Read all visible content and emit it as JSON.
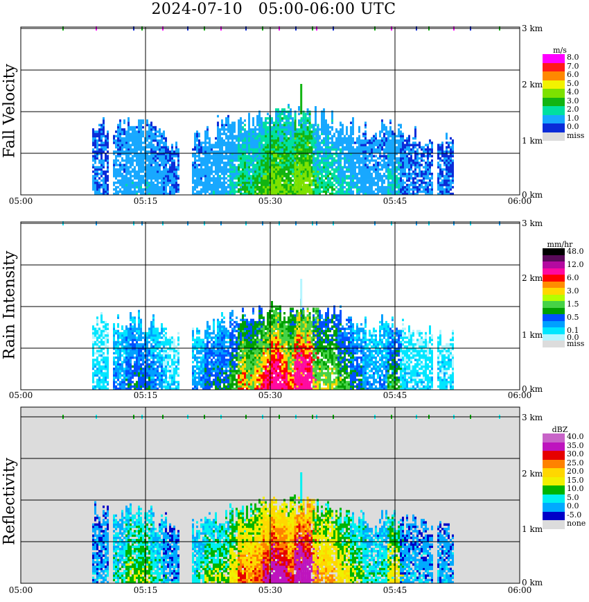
{
  "title": "2024-07-10   05:00-06:00 UTC",
  "x_ticks": [
    "05:00",
    "05:15",
    "05:30",
    "05:45",
    "06:00"
  ],
  "height_ticks": [
    "3 km",
    "2 km",
    "1 km",
    "0 km"
  ],
  "panels": [
    {
      "id": "fall-velocity",
      "ylabel": "Fall Velocity",
      "unit": "m/s",
      "background": "#ffffff",
      "legend": [
        {
          "label": "8.0",
          "color": "#ff00ff"
        },
        {
          "label": "7.0",
          "color": "#ff1a1a"
        },
        {
          "label": "6.0",
          "color": "#ff8800"
        },
        {
          "label": "5.0",
          "color": "#f2f200"
        },
        {
          "label": "4.0",
          "color": "#7de100"
        },
        {
          "label": "3.0",
          "color": "#12b412"
        },
        {
          "label": "2.0",
          "color": "#00e0a0"
        },
        {
          "label": "1.0",
          "color": "#18a8ff"
        },
        {
          "label": "0.0",
          "color": "#0a2cd8"
        },
        {
          "label": "miss",
          "color": "#dcdcdc"
        }
      ]
    },
    {
      "id": "rain-intensity",
      "ylabel": "Rain Intensity",
      "unit": "mm/hr",
      "background": "#ffffff",
      "legend": [
        {
          "label": "48.0",
          "color": "#000000"
        },
        {
          "label": "",
          "color": "#5a0a5a"
        },
        {
          "label": "12.0",
          "color": "#b40aa0"
        },
        {
          "label": "",
          "color": "#ff0aa0"
        },
        {
          "label": "6.0",
          "color": "#ff0000"
        },
        {
          "label": "",
          "color": "#ff8c00"
        },
        {
          "label": "3.0",
          "color": "#ffd700"
        },
        {
          "label": "",
          "color": "#b4ff00"
        },
        {
          "label": "1.5",
          "color": "#46d246"
        },
        {
          "label": "",
          "color": "#00a000"
        },
        {
          "label": "0.5",
          "color": "#0050ff"
        },
        {
          "label": "",
          "color": "#00a0ff"
        },
        {
          "label": "0.1",
          "color": "#00e6ff"
        },
        {
          "label": "0.0",
          "color": "#b4f5ff"
        },
        {
          "label": "miss",
          "color": "#dcdcdc"
        }
      ]
    },
    {
      "id": "reflectivity",
      "ylabel": "Reflectivity",
      "unit": "dBZ",
      "background": "#dcdcdc",
      "legend": [
        {
          "label": "40.0",
          "color": "#c864c8"
        },
        {
          "label": "35.0",
          "color": "#be14be"
        },
        {
          "label": "30.0",
          "color": "#e60000"
        },
        {
          "label": "25.0",
          "color": "#ff8200"
        },
        {
          "label": "20.0",
          "color": "#ffd700"
        },
        {
          "label": "15.0",
          "color": "#f0f000"
        },
        {
          "label": "10.0",
          "color": "#00b400"
        },
        {
          "label": "5.0",
          "color": "#00f0f0"
        },
        {
          "label": "0.0",
          "color": "#00aaff"
        },
        {
          "label": "-5.0",
          "color": "#0000c8"
        },
        {
          "label": "none",
          "color": "#dcdcdc"
        }
      ]
    }
  ],
  "chart_data": {
    "type": "heatmap",
    "title": "2024-07-10   05:00-06:00 UTC",
    "x": {
      "start": "05:00",
      "end": "06:00",
      "ticks": [
        "05:00",
        "05:15",
        "05:30",
        "05:45",
        "06:00"
      ]
    },
    "y": {
      "unit": "km",
      "range": [
        0,
        3.3
      ],
      "ticks": [
        0,
        1,
        2,
        3
      ]
    },
    "grid": true,
    "rain_columns": [
      {
        "time_min": 9.5,
        "top_km": 1.4,
        "level": 1
      },
      {
        "time_min": 12.0,
        "top_km": 1.35,
        "level": 2
      },
      {
        "time_min": 13.5,
        "top_km": 1.4,
        "level": 3
      },
      {
        "time_min": 15.0,
        "top_km": 1.35,
        "level": 3
      },
      {
        "time_min": 16.5,
        "top_km": 1.2,
        "level": 2
      },
      {
        "time_min": 18.0,
        "top_km": 1.0,
        "level": 1
      },
      {
        "time_min": 21.5,
        "top_km": 1.1,
        "level": 2
      },
      {
        "time_min": 23.0,
        "top_km": 1.2,
        "level": 3
      },
      {
        "time_min": 24.5,
        "top_km": 1.35,
        "level": 3
      },
      {
        "time_min": 26.0,
        "top_km": 1.4,
        "level": 4
      },
      {
        "time_min": 27.0,
        "top_km": 1.4,
        "level": 6
      },
      {
        "time_min": 28.0,
        "top_km": 1.45,
        "level": 5
      },
      {
        "time_min": 29.0,
        "top_km": 1.45,
        "level": 6
      },
      {
        "time_min": 30.0,
        "top_km": 1.5,
        "level": 7
      },
      {
        "time_min": 31.0,
        "top_km": 1.5,
        "level": 8
      },
      {
        "time_min": 32.0,
        "top_km": 1.5,
        "level": 7
      },
      {
        "time_min": 33.0,
        "top_km": 1.55,
        "level": 6
      },
      {
        "time_min": 33.8,
        "top_km": 1.5,
        "level": 9
      },
      {
        "time_min": 34.8,
        "top_km": 1.5,
        "level": 8
      },
      {
        "time_min": 36.0,
        "top_km": 1.5,
        "level": 5
      },
      {
        "time_min": 37.5,
        "top_km": 1.45,
        "level": 5
      },
      {
        "time_min": 39.0,
        "top_km": 1.35,
        "level": 4
      },
      {
        "time_min": 40.5,
        "top_km": 1.25,
        "level": 3
      },
      {
        "time_min": 42.0,
        "top_km": 1.1,
        "level": 2
      },
      {
        "time_min": 44.0,
        "top_km": 1.3,
        "level": 2
      },
      {
        "time_min": 45.0,
        "top_km": 1.2,
        "level": 4
      },
      {
        "time_min": 46.5,
        "top_km": 1.2,
        "level": 1
      },
      {
        "time_min": 48.5,
        "top_km": 1.1,
        "level": 1
      },
      {
        "time_min": 51.0,
        "top_km": 1.05,
        "level": 1
      }
    ],
    "layer_3km_times_min": [
      5,
      9,
      13.5,
      14.5,
      17,
      20,
      22,
      24,
      27,
      29,
      31,
      33,
      35,
      35.5,
      37.5,
      42.5,
      44.5,
      47.5,
      49,
      52,
      54,
      57.5
    ],
    "panel_scales": [
      {
        "name": "Fall Velocity",
        "unit": "m/s",
        "levels": [
          0.0,
          1.0,
          2.0,
          3.0,
          4.0,
          5.0,
          6.0,
          7.0,
          8.0
        ]
      },
      {
        "name": "Rain Intensity",
        "unit": "mm/hr",
        "levels": [
          0.0,
          0.1,
          0.5,
          1.5,
          3.0,
          6.0,
          12.0,
          48.0
        ]
      },
      {
        "name": "Reflectivity",
        "unit": "dBZ",
        "levels": [
          -5.0,
          0.0,
          5.0,
          10.0,
          15.0,
          20.0,
          25.0,
          30.0,
          35.0,
          40.0
        ]
      }
    ]
  }
}
